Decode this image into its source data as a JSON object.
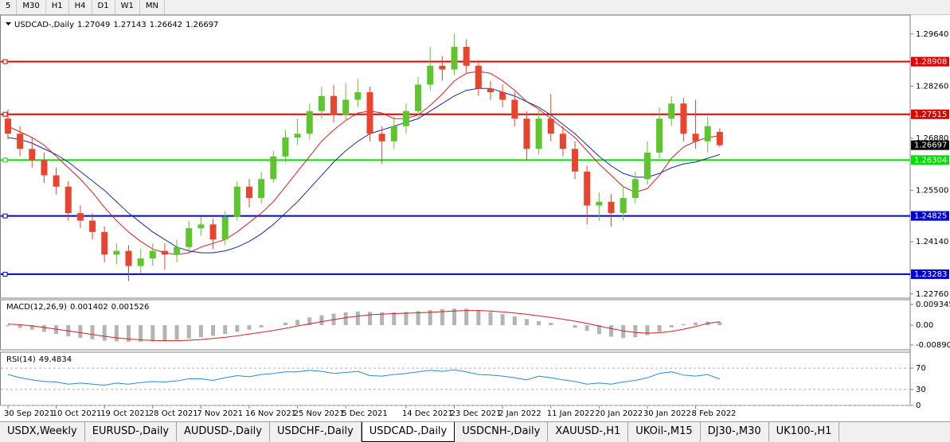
{
  "toolbar": [
    "5",
    "M30",
    "H1",
    "H4",
    "D1",
    "W1",
    "MN"
  ],
  "tabs": [
    "USDX,Weekly",
    "EURUSD-,Daily",
    "AUDUSD-,Daily",
    "USDCHF-,Daily",
    "USDCAD-,Daily",
    "USDCNH-,Daily",
    "XAUUSD-,H1",
    "UKOil-,M15",
    "DJ30-,M30",
    "UK100-,H1"
  ],
  "active_tab": "USDCAD-,Daily",
  "chart_data": [
    {
      "type": "candlestick",
      "title": "USDCAD-,Daily",
      "categories": [
        "30 Sep 2021",
        null,
        null,
        null,
        "10 Oct 2021",
        null,
        null,
        null,
        "19 Oct 2021",
        null,
        null,
        null,
        "28 Oct 2021",
        null,
        null,
        null,
        "7 Nov 2021",
        null,
        null,
        null,
        "16 Nov 2021",
        null,
        null,
        null,
        "25 Nov 2021",
        null,
        null,
        null,
        "5 Dec 2021",
        null,
        null,
        null,
        null,
        "14 Dec 2021",
        null,
        null,
        null,
        "23 Dec 2021",
        null,
        null,
        null,
        "2 Jan 2022",
        null,
        null,
        null,
        "11 Jan 2022",
        null,
        null,
        null,
        "20 Jan 2022",
        null,
        null,
        null,
        "30 Jan 2022",
        null,
        null,
        null,
        "8 Feb 2022",
        null,
        null
      ],
      "open": [
        1.274,
        1.27,
        1.266,
        1.263,
        1.259,
        1.256,
        1.249,
        1.247,
        1.244,
        1.238,
        1.239,
        1.235,
        1.237,
        1.239,
        1.238,
        1.24,
        1.245,
        1.246,
        1.242,
        1.248,
        1.256,
        1.253,
        1.258,
        1.264,
        1.269,
        1.27,
        1.276,
        1.28,
        1.275,
        1.279,
        1.281,
        1.27,
        1.268,
        1.272,
        1.276,
        1.283,
        1.288,
        1.287,
        1.293,
        1.288,
        1.282,
        1.281,
        1.279,
        1.274,
        1.266,
        1.274,
        1.27,
        1.266,
        1.26,
        1.251,
        1.252,
        1.249,
        1.253,
        1.258,
        1.265,
        1.274,
        1.278,
        1.27,
        1.268,
        1.27049
      ],
      "high": [
        1.2765,
        1.272,
        1.269,
        1.265,
        1.261,
        1.2575,
        1.251,
        1.249,
        1.2455,
        1.241,
        1.2405,
        1.2395,
        1.241,
        1.241,
        1.242,
        1.247,
        1.248,
        1.2475,
        1.2495,
        1.2575,
        1.258,
        1.26,
        1.2655,
        1.271,
        1.274,
        1.278,
        1.2825,
        1.283,
        1.2835,
        1.2845,
        1.2825,
        1.272,
        1.2745,
        1.278,
        1.285,
        1.293,
        1.2905,
        1.2965,
        1.295,
        1.2895,
        1.284,
        1.283,
        1.281,
        1.276,
        1.2765,
        1.2805,
        1.272,
        1.268,
        1.2615,
        1.2545,
        1.254,
        1.256,
        1.26,
        1.268,
        1.277,
        1.28,
        1.2795,
        1.279,
        1.2745,
        1.27143
      ],
      "low": [
        1.2685,
        1.264,
        1.261,
        1.257,
        1.254,
        1.247,
        1.245,
        1.242,
        1.236,
        1.2355,
        1.231,
        1.233,
        1.235,
        1.234,
        1.236,
        1.2385,
        1.243,
        1.2395,
        1.2405,
        1.247,
        1.2505,
        1.2515,
        1.257,
        1.2625,
        1.267,
        1.2685,
        1.274,
        1.273,
        1.2735,
        1.277,
        1.268,
        1.262,
        1.266,
        1.27,
        1.2745,
        1.2815,
        1.284,
        1.2855,
        1.286,
        1.28,
        1.279,
        1.277,
        1.272,
        1.263,
        1.2645,
        1.268,
        1.264,
        1.258,
        1.246,
        1.247,
        1.2455,
        1.247,
        1.2515,
        1.2565,
        1.2635,
        1.272,
        1.268,
        1.266,
        1.265,
        1.26642
      ],
      "close": [
        1.27,
        1.266,
        1.263,
        1.259,
        1.256,
        1.249,
        1.247,
        1.244,
        1.238,
        1.239,
        1.235,
        1.237,
        1.239,
        1.238,
        1.24,
        1.245,
        1.246,
        1.242,
        1.248,
        1.256,
        1.253,
        1.258,
        1.264,
        1.269,
        1.27,
        1.276,
        1.28,
        1.275,
        1.279,
        1.281,
        1.27,
        1.268,
        1.272,
        1.276,
        1.283,
        1.288,
        1.287,
        1.293,
        1.288,
        1.282,
        1.281,
        1.279,
        1.274,
        1.266,
        1.274,
        1.27,
        1.266,
        1.26,
        1.251,
        1.252,
        1.249,
        1.253,
        1.258,
        1.265,
        1.274,
        1.278,
        1.27,
        1.268,
        1.272,
        1.26697
      ],
      "up_color": "#5fc52f",
      "down_color": "#e8442e",
      "lines": [
        {
          "color": "#d42020",
          "values": [
            1.272,
            1.2705,
            1.269,
            1.267,
            1.264,
            1.261,
            1.258,
            1.2545,
            1.2505,
            1.247,
            1.244,
            1.2415,
            1.2395,
            1.2385,
            1.238,
            1.2385,
            1.24,
            1.241,
            1.242,
            1.244,
            1.2465,
            1.249,
            1.252,
            1.256,
            1.26,
            1.264,
            1.268,
            1.271,
            1.2735,
            1.2755,
            1.276,
            1.2755,
            1.274,
            1.274,
            1.275,
            1.2775,
            1.2805,
            1.284,
            1.286,
            1.2865,
            1.286,
            1.284,
            1.2815,
            1.2785,
            1.2765,
            1.274,
            1.2715,
            1.269,
            1.2655,
            1.262,
            1.259,
            1.256,
            1.2545,
            1.2555,
            1.259,
            1.2635,
            1.2665,
            1.268,
            1.269,
            1.2695
          ]
        },
        {
          "color": "#1a2a9a",
          "values": [
            1.269,
            1.2685,
            1.2675,
            1.266,
            1.2645,
            1.2625,
            1.26,
            1.2575,
            1.255,
            1.252,
            1.249,
            1.2465,
            1.244,
            1.242,
            1.24,
            1.239,
            1.2385,
            1.2385,
            1.239,
            1.24,
            1.2415,
            1.2435,
            1.246,
            1.249,
            1.252,
            1.2555,
            1.259,
            1.2625,
            1.2655,
            1.268,
            1.27,
            1.271,
            1.272,
            1.273,
            1.274,
            1.276,
            1.278,
            1.28,
            1.2815,
            1.282,
            1.282,
            1.281,
            1.28,
            1.2785,
            1.277,
            1.275,
            1.2725,
            1.27,
            1.267,
            1.264,
            1.2615,
            1.2595,
            1.2585,
            1.2585,
            1.2595,
            1.261,
            1.262,
            1.2625,
            1.2635,
            1.2645
          ]
        }
      ],
      "levels": [
        {
          "value": 1.28908,
          "color": "#e00000"
        },
        {
          "value": 1.27515,
          "color": "#e00000"
        },
        {
          "value": 1.26304,
          "color": "#00e000"
        },
        {
          "value": 1.24825,
          "color": "#0000d0"
        },
        {
          "value": 1.23283,
          "color": "#0000d0"
        }
      ],
      "ylim": [
        1.2265,
        1.3014
      ],
      "yticks": [
        {
          "value": 1.2964,
          "label": "1.29640"
        },
        {
          "value": 1.2826,
          "label": "1.28260"
        },
        {
          "value": 1.2688,
          "label": "1.26880"
        },
        {
          "value": 1.255,
          "label": "1.25500"
        },
        {
          "value": 1.2414,
          "label": "1.24140"
        },
        {
          "value": 1.2276,
          "label": "1.22760"
        }
      ]
    },
    {
      "type": "macd",
      "title": "MACD(12,26,9)",
      "color": "#b4b4b4",
      "signal_color": "#d42020",
      "values": [
        -0.0005,
        -0.0012,
        -0.002,
        -0.003,
        -0.004,
        -0.005,
        -0.0058,
        -0.0064,
        -0.007,
        -0.0073,
        -0.0075,
        -0.0075,
        -0.0073,
        -0.007,
        -0.0066,
        -0.006,
        -0.0054,
        -0.0048,
        -0.004,
        -0.003,
        -0.002,
        -0.001,
        0.0,
        0.0012,
        0.0024,
        0.0035,
        0.0045,
        0.0052,
        0.0058,
        0.0062,
        0.006,
        0.0058,
        0.0058,
        0.006,
        0.0064,
        0.0068,
        0.0072,
        0.0075,
        0.0074,
        0.0068,
        0.006,
        0.005,
        0.004,
        0.0028,
        0.0018,
        0.001,
        0.0,
        -0.0012,
        -0.0026,
        -0.004,
        -0.0052,
        -0.0058,
        -0.0055,
        -0.0045,
        -0.003,
        -0.001,
        0.0005,
        0.0012,
        0.0016,
        0.001402
      ],
      "signal": [
        0.0005,
        0.0002,
        -0.0003,
        -0.001,
        -0.0018,
        -0.0026,
        -0.0034,
        -0.0042,
        -0.005,
        -0.0057,
        -0.0062,
        -0.0066,
        -0.0069,
        -0.007,
        -0.007,
        -0.0068,
        -0.0065,
        -0.006,
        -0.0055,
        -0.0048,
        -0.004,
        -0.0032,
        -0.0024,
        -0.0014,
        -0.0004,
        0.0006,
        0.0016,
        0.0025,
        0.0034,
        0.0041,
        0.0047,
        0.005,
        0.0052,
        0.0054,
        0.0056,
        0.0058,
        0.0061,
        0.0064,
        0.0066,
        0.0066,
        0.0064,
        0.006,
        0.0055,
        0.0049,
        0.0042,
        0.0035,
        0.0027,
        0.0018,
        0.0008,
        -0.0004,
        -0.0015,
        -0.0026,
        -0.0033,
        -0.0036,
        -0.0034,
        -0.0028,
        -0.0018,
        -0.0006,
        0.0008,
        0.001526
      ],
      "ylim": [
        -0.0111,
        0.0115
      ],
      "yticks": [
        0.009345,
        {
          "value": 0,
          "label": "0.00"
        },
        -0.008902
      ]
    },
    {
      "type": "line",
      "title": "RSI(14)",
      "color": "#2a8ad4",
      "values": [
        58,
        52,
        48,
        45,
        44,
        40,
        42,
        40,
        38,
        42,
        40,
        43,
        45,
        44,
        46,
        50,
        50,
        47,
        52,
        56,
        54,
        58,
        60,
        63,
        63,
        66,
        64,
        60,
        62,
        64,
        56,
        55,
        58,
        60,
        63,
        66,
        64,
        67,
        63,
        58,
        57,
        55,
        52,
        48,
        55,
        52,
        48,
        45,
        40,
        42,
        40,
        44,
        47,
        52,
        60,
        63,
        57,
        55,
        58,
        49.4834
      ],
      "ylim": [
        0,
        100
      ],
      "yticks": [
        70,
        30,
        0
      ],
      "grid": true
    }
  ]
}
